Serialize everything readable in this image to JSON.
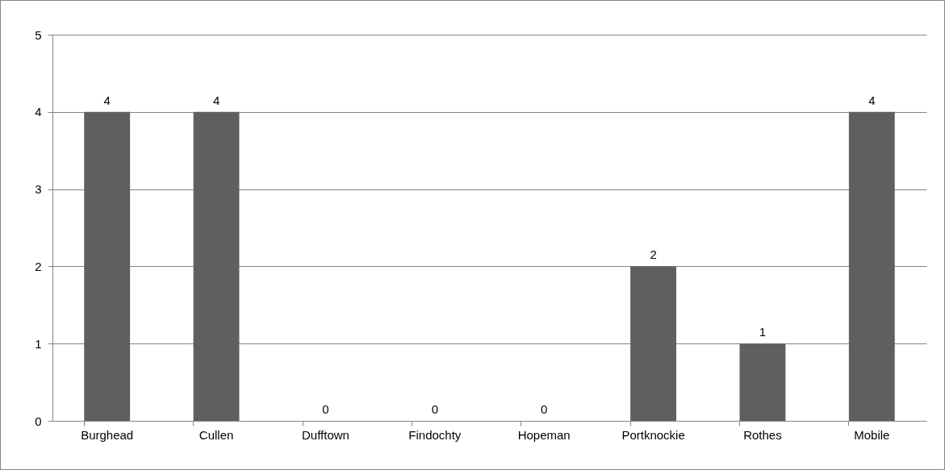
{
  "chart_data": {
    "type": "bar",
    "categories": [
      "Burghead",
      "Cullen",
      "Dufftown",
      "Findochty",
      "Hopeman",
      "Portknockie",
      "Rothes",
      "Mobile"
    ],
    "values": [
      4,
      4,
      0,
      0,
      0,
      2,
      1,
      4
    ],
    "color": "#5f5f5f",
    "ylim": [
      0,
      5
    ],
    "yticks": [
      0,
      1,
      2,
      3,
      4,
      5
    ],
    "grid": "y",
    "data_labels": true
  }
}
